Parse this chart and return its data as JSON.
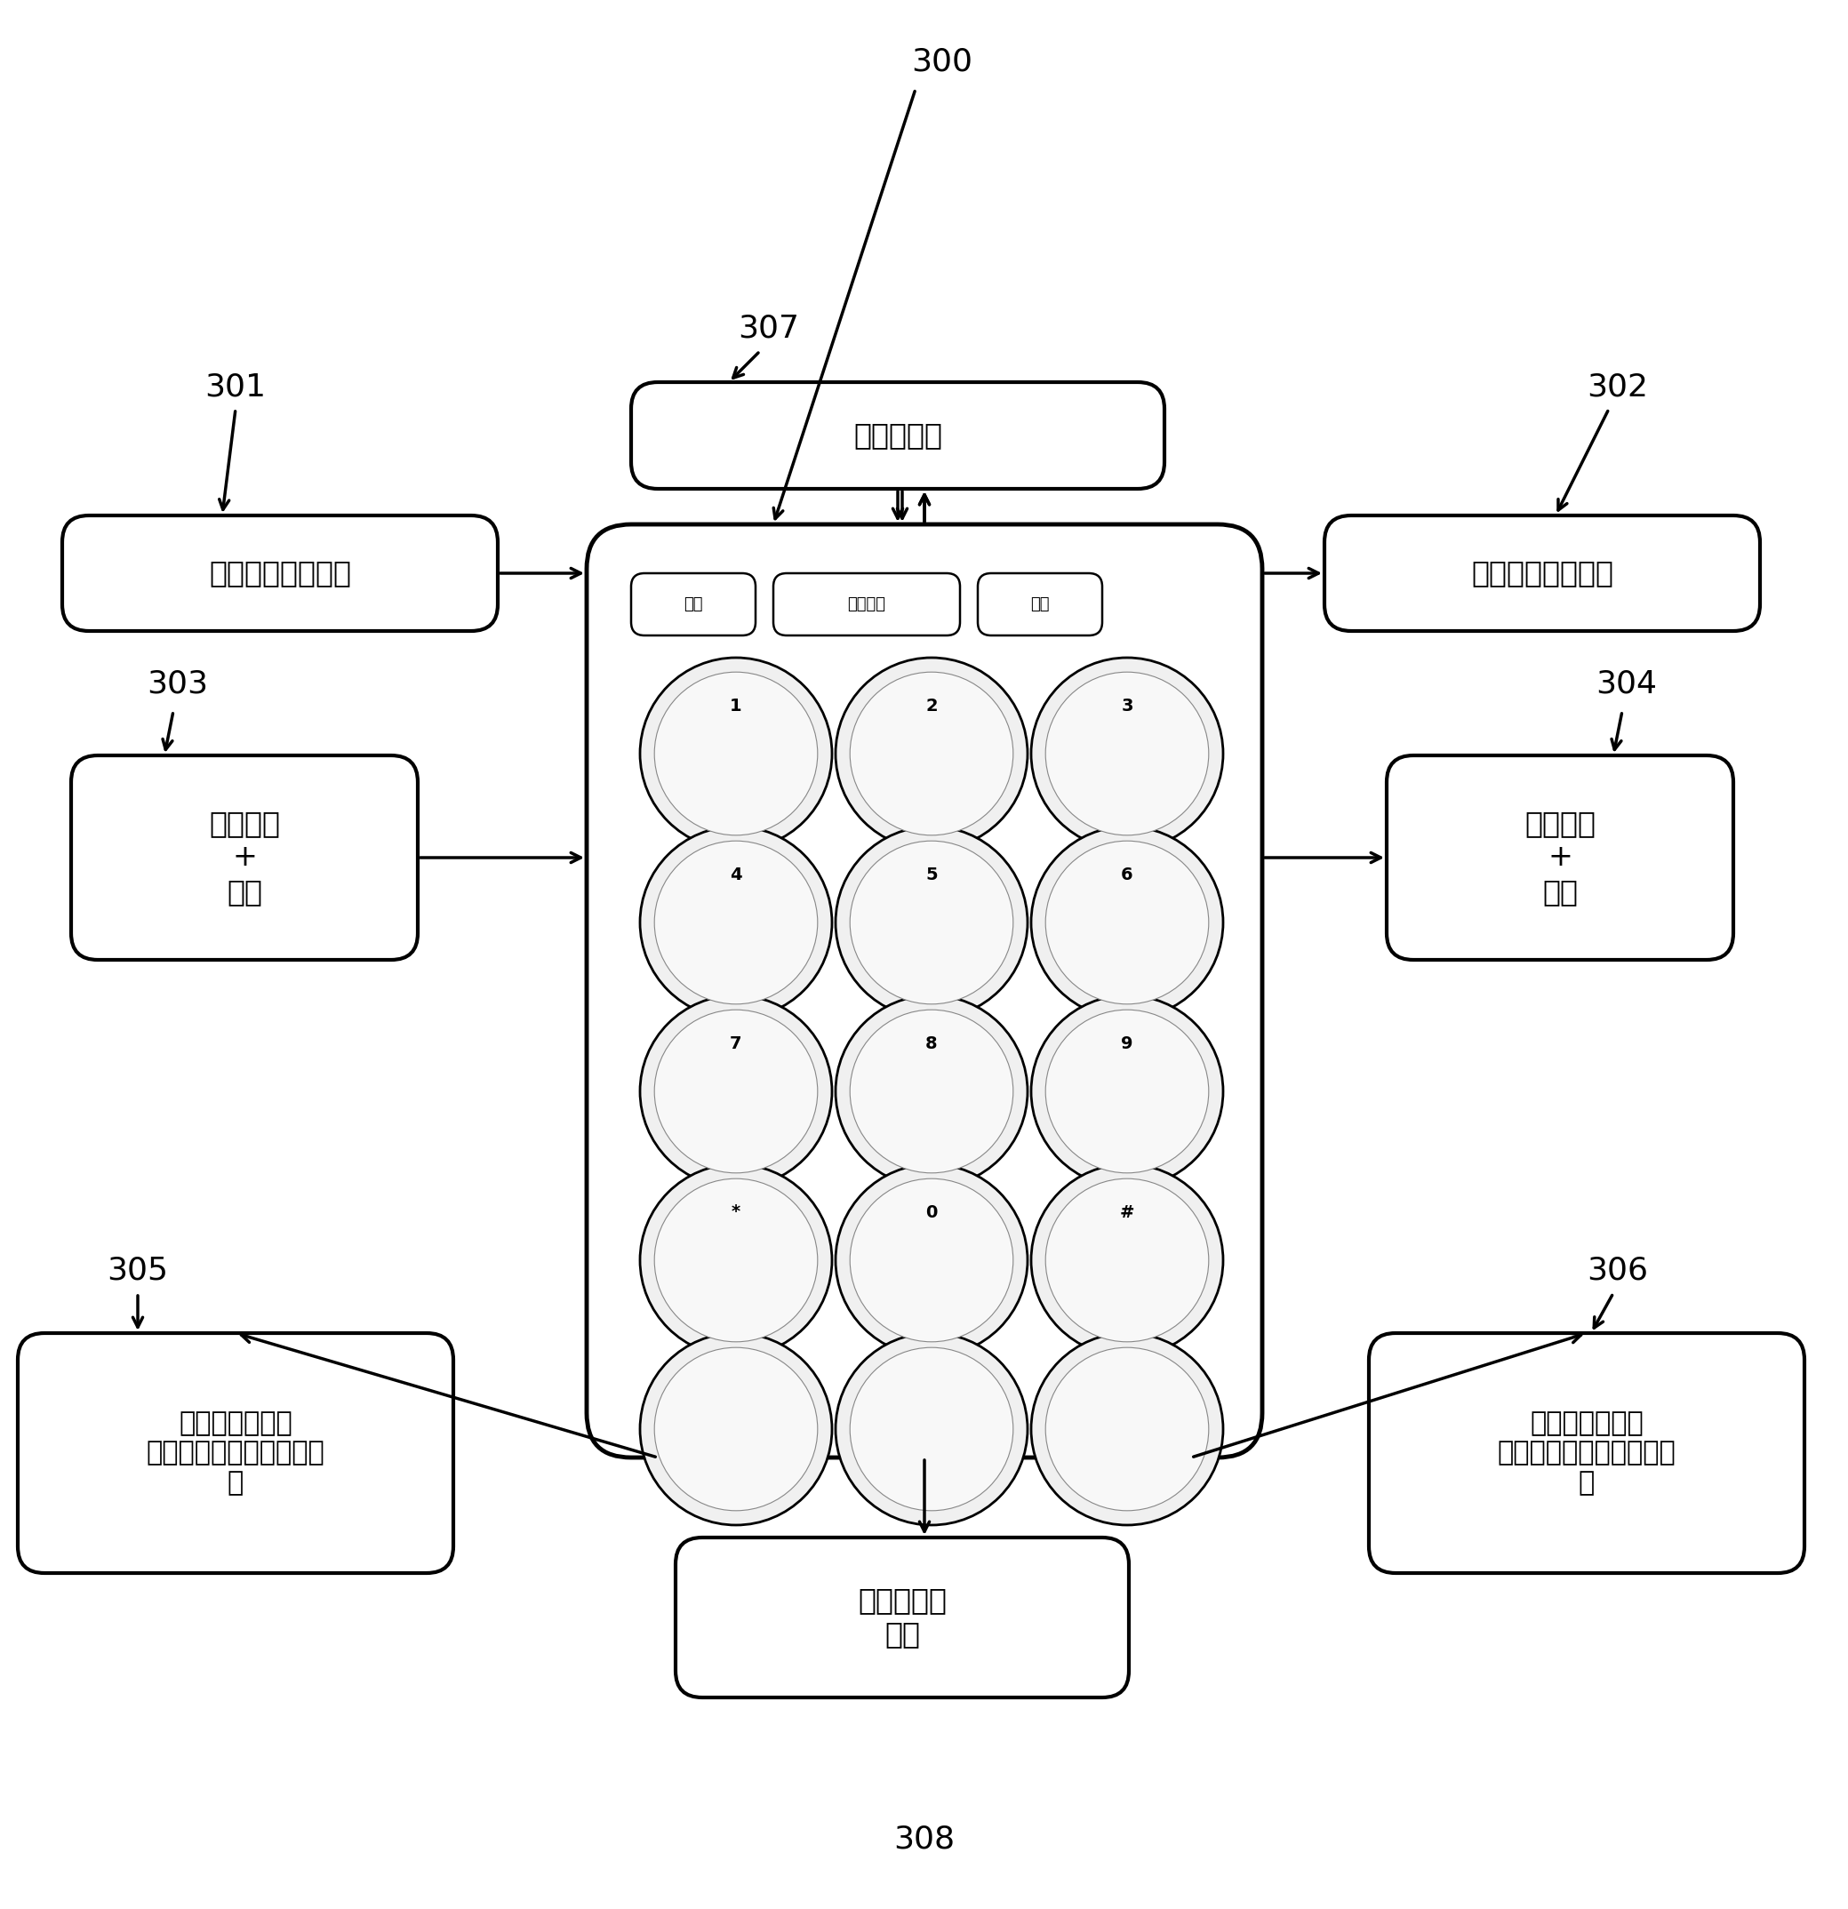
{
  "fig_width": 20.79,
  "fig_height": 21.48,
  "bg_color": "#ffffff",
  "label_300": "300",
  "label_301": "301",
  "label_302": "302",
  "label_303": "303",
  "label_304": "304",
  "label_305": "305",
  "label_306": "306",
  "label_307": "307",
  "label_308": "308",
  "box301_text": "左侧汉字名的输出",
  "box302_text": "右侧汉字名的输出",
  "box303_text": "左侧代码\n+\n空格",
  "box304_text": "右侧代码\n+\n空格",
  "box305_text": "对应于左侧二级\n双重快捷代码的汉字的输\n出",
  "box306_text": "对应于右侧二级\n双重快捷代码的汉字的输\n出",
  "box307_text": "数字的输出",
  "box308_text": "右侧代码的\n输入",
  "phone_top_text1": "呼叫",
  "phone_top_text2": "汉字模式",
  "phone_top_text3": "电源"
}
